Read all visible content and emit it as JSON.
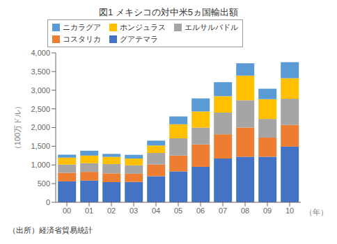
{
  "chart_data": {
    "type": "bar",
    "stacked": true,
    "title": "図1  メキシコの対中米5ヵ国輸出額",
    "ylabel": "（100万ドル）",
    "xlabel": "（年）",
    "annotations": [
      "（出所）経済省貿易統計"
    ],
    "categories": [
      "00",
      "01",
      "02",
      "03",
      "04",
      "05",
      "06",
      "07",
      "08",
      "09",
      "10"
    ],
    "series": [
      {
        "name": "グアテマラ",
        "color": "#4472c4",
        "values": [
          560,
          580,
          540,
          545,
          700,
          830,
          950,
          1170,
          1220,
          1220,
          1490
        ]
      },
      {
        "name": "コスタリカ",
        "color": "#ed7d31",
        "values": [
          230,
          235,
          235,
          220,
          310,
          420,
          600,
          650,
          780,
          510,
          580
        ]
      },
      {
        "name": "エルサルバドル",
        "color": "#a5a5a5",
        "values": [
          220,
          230,
          250,
          225,
          310,
          460,
          450,
          580,
          730,
          500,
          700
        ]
      },
      {
        "name": "ホンジュラス",
        "color": "#ffc000",
        "values": [
          185,
          205,
          190,
          180,
          200,
          380,
          430,
          440,
          660,
          530,
          550
        ]
      },
      {
        "name": "ニカラグア",
        "color": "#5b9bd5",
        "values": [
          80,
          130,
          80,
          100,
          130,
          210,
          350,
          375,
          330,
          280,
          430
        ]
      }
    ],
    "ylim": [
      0,
      4000
    ],
    "yticks": [
      0,
      500,
      {
        "value": 1000,
        "label": "1,000"
      },
      {
        "value": 1500,
        "label": "1,500"
      },
      {
        "value": 2000,
        "label": "2,000"
      },
      {
        "value": 2500,
        "label": "2,500"
      },
      {
        "value": 3000,
        "label": "3,000"
      },
      {
        "value": 3500,
        "label": "3,500"
      },
      {
        "value": 4000,
        "label": "4,000"
      }
    ],
    "grid": false,
    "legend": "upper left"
  }
}
